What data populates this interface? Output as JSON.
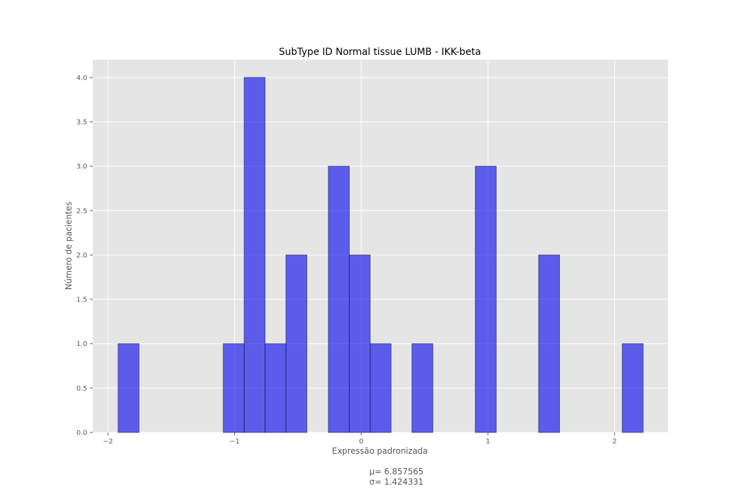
{
  "chart_data": {
    "type": "bar",
    "title": "SubType ID Normal tissue LUMB - IKK-beta",
    "xlabel": "Expressão padronizada",
    "ylabel": "Número de pacientes",
    "annotation_lines": [
      "μ= 6.857565",
      "σ= 1.424331"
    ],
    "xlim": [
      -2.12,
      2.42
    ],
    "ylim": [
      0,
      4.2
    ],
    "grid": true,
    "bin_width": 0.1655,
    "x_ticks": [
      {
        "value": -2,
        "label": "−2"
      },
      {
        "value": -1,
        "label": "−1"
      },
      {
        "value": 0,
        "label": "0"
      },
      {
        "value": 1,
        "label": "1"
      },
      {
        "value": 2,
        "label": "2"
      }
    ],
    "y_ticks": [
      {
        "value": 0,
        "label": "0.0"
      },
      {
        "value": 0.5,
        "label": "0.5"
      },
      {
        "value": 1,
        "label": "1.0"
      },
      {
        "value": 1.5,
        "label": "1.5"
      },
      {
        "value": 2,
        "label": "2.0"
      },
      {
        "value": 2.5,
        "label": "2.5"
      },
      {
        "value": 3,
        "label": "3.0"
      },
      {
        "value": 3.5,
        "label": "3.5"
      },
      {
        "value": 4,
        "label": "4.0"
      }
    ],
    "bins": [
      {
        "x": -1.92,
        "count": 1
      },
      {
        "x": -1.09,
        "count": 1
      },
      {
        "x": -0.925,
        "count": 4
      },
      {
        "x": -0.76,
        "count": 1
      },
      {
        "x": -0.595,
        "count": 2
      },
      {
        "x": -0.26,
        "count": 3
      },
      {
        "x": -0.095,
        "count": 2
      },
      {
        "x": 0.07,
        "count": 1
      },
      {
        "x": 0.4,
        "count": 1
      },
      {
        "x": 0.9,
        "count": 3
      },
      {
        "x": 1.4,
        "count": 2
      },
      {
        "x": 2.06,
        "count": 1
      }
    ],
    "colors": {
      "bar_fill": "#0000ee",
      "bar_edge": "#1a1a4d",
      "plot_bg": "#e5e5e5",
      "grid": "#ffffff",
      "text": "#555555",
      "title": "#000000"
    }
  }
}
